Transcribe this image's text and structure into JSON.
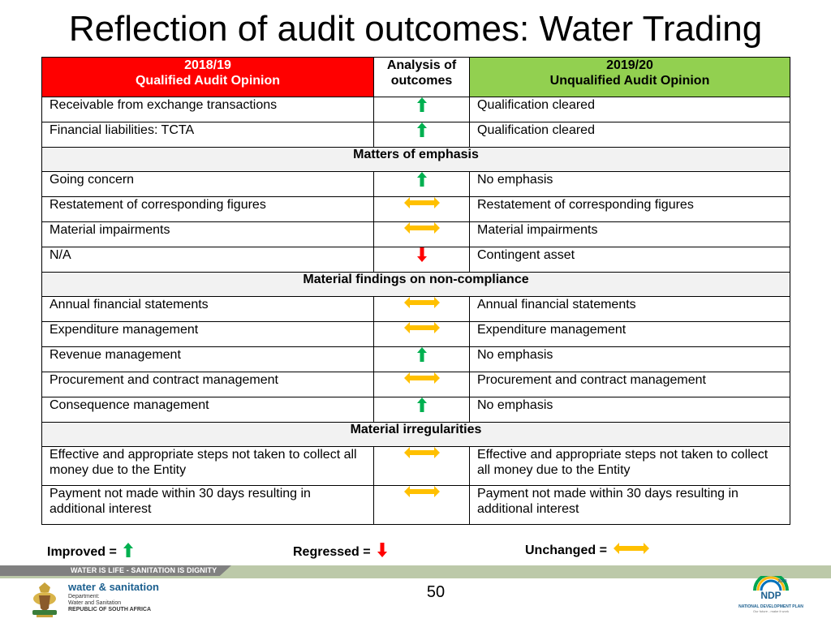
{
  "title": "Reflection of audit outcomes: Water Trading",
  "colors": {
    "header_left": "#ff0000",
    "header_right": "#92d050",
    "section_bg": "#f2f2f2",
    "improved": "#00b050",
    "regressed": "#ff0000",
    "unchanged": "#ffc000"
  },
  "table": {
    "header": {
      "left_year": "2018/19",
      "left_opinion": "Qualified Audit Opinion",
      "middle_line1": "Analysis of",
      "middle_line2": "outcomes",
      "right_year": "2019/20",
      "right_opinion": "Unqualified Audit Opinion"
    },
    "rows": [
      {
        "type": "row",
        "left": "Receivable from exchange transactions",
        "status": "improved",
        "right": "Qualification cleared"
      },
      {
        "type": "row",
        "left": "Financial liabilities: TCTA",
        "status": "improved",
        "right": "Qualification cleared"
      },
      {
        "type": "section",
        "label": "Matters of emphasis"
      },
      {
        "type": "row",
        "left": "Going concern",
        "status": "improved",
        "right": "No emphasis"
      },
      {
        "type": "row",
        "left": "Restatement of corresponding figures",
        "status": "unchanged",
        "right": "Restatement of corresponding figures"
      },
      {
        "type": "row",
        "left": "Material impairments",
        "status": "unchanged",
        "right": "Material impairments"
      },
      {
        "type": "row",
        "left": "N/A",
        "status": "regressed",
        "right": "Contingent asset"
      },
      {
        "type": "section",
        "label": "Material findings on non-compliance"
      },
      {
        "type": "row",
        "left": "Annual financial statements",
        "status": "unchanged",
        "right": "Annual financial statements"
      },
      {
        "type": "row",
        "left": "Expenditure management",
        "status": "unchanged",
        "right": "Expenditure management"
      },
      {
        "type": "row",
        "left": "Revenue management",
        "status": "improved",
        "right": "No emphasis"
      },
      {
        "type": "row",
        "left": "Procurement and contract management",
        "status": "unchanged",
        "right": "Procurement and contract management"
      },
      {
        "type": "row",
        "left": "Consequence management",
        "status": "improved",
        "right": "No emphasis"
      },
      {
        "type": "section",
        "label": "Material irregularities"
      },
      {
        "type": "row",
        "tall": true,
        "left": "Effective and appropriate steps not taken to collect all money due to the Entity",
        "status": "unchanged",
        "right": "Effective and appropriate steps not taken to collect all money due to the Entity"
      },
      {
        "type": "row",
        "tall": true,
        "left": "Payment not made within 30 days resulting in additional interest",
        "status": "unchanged",
        "right": "Payment not made within 30 days resulting in additional interest"
      }
    ]
  },
  "legend": {
    "improved_label": "Improved  =",
    "regressed_label": "Regressed =",
    "unchanged_label": "Unchanged ="
  },
  "footer": {
    "banner": "WATER IS LIFE - SANITATION IS DIGNITY",
    "dept_name": "water & sanitation",
    "dept_line1": "Department:",
    "dept_line2": "Water and Sanitation",
    "dept_line3": "REPUBLIC OF SOUTH AFRICA",
    "page_number": "50",
    "ndp_year": "2030",
    "ndp_title": "NATIONAL DEVELOPMENT PLAN",
    "ndp_tagline": "Our future - make it work"
  }
}
